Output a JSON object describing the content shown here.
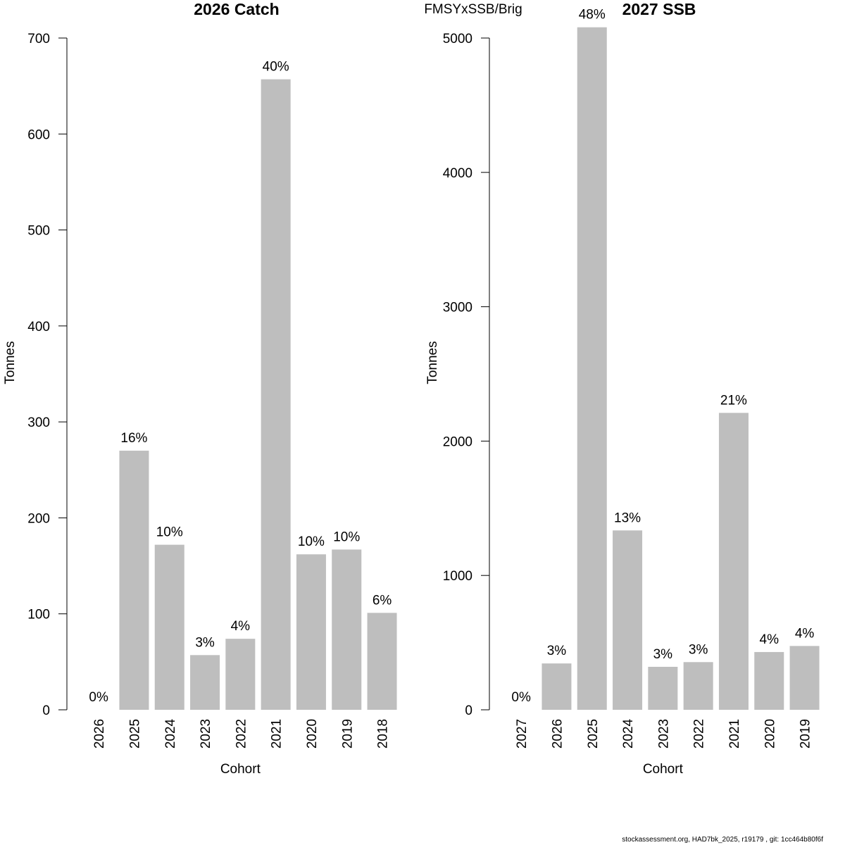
{
  "main_title": "FMSYxSSB/Brig",
  "footer": "stockassessment.org, HAD7bk_2025, r19179 , git: 1cc464b80f6f",
  "colors": {
    "bar": "#bebebe",
    "axis": "#000000"
  },
  "chart_data": [
    {
      "type": "bar",
      "title": "2026 Catch",
      "xlabel": "Cohort",
      "ylabel": "Tonnes",
      "ylim": [
        0,
        700
      ],
      "yticks": [
        0,
        100,
        200,
        300,
        400,
        500,
        600,
        700
      ],
      "categories": [
        "2026",
        "2025",
        "2024",
        "2023",
        "2022",
        "2021",
        "2020",
        "2019",
        "2018"
      ],
      "values": [
        0,
        270,
        172,
        57,
        74,
        657,
        162,
        167,
        101
      ],
      "labels": [
        "0%",
        "16%",
        "10%",
        "3%",
        "4%",
        "40%",
        "10%",
        "10%",
        "6%"
      ],
      "grid": false,
      "legend": "none"
    },
    {
      "type": "bar",
      "title": "2027 SSB",
      "xlabel": "Cohort",
      "ylabel": "Tonnes",
      "ylim": [
        0,
        5000
      ],
      "yticks": [
        0,
        1000,
        2000,
        3000,
        4000,
        5000
      ],
      "categories": [
        "2027",
        "2026",
        "2025",
        "2024",
        "2023",
        "2022",
        "2021",
        "2020",
        "2019"
      ],
      "values": [
        0,
        345,
        5080,
        1335,
        320,
        355,
        2210,
        430,
        475
      ],
      "labels": [
        "0%",
        "3%",
        "48%",
        "13%",
        "3%",
        "3%",
        "21%",
        "4%",
        "4%"
      ],
      "grid": false,
      "legend": "none"
    }
  ]
}
